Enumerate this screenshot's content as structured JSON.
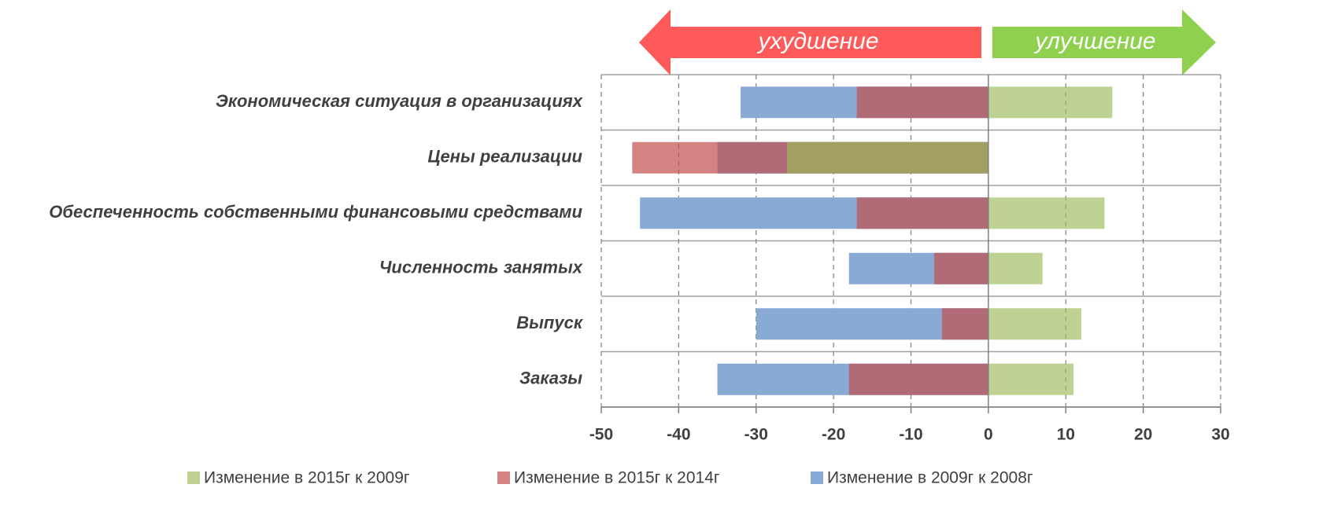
{
  "chart_data": {
    "type": "bar",
    "orientation": "horizontal",
    "overlap": true,
    "annotations": [
      "ухудшение",
      "улучшение"
    ],
    "categories": [
      "Экономическая ситуация в организациях",
      "Цены реализации",
      "Обеспеченность собственными финансовыми средствами",
      "Численность занятых",
      "Выпуск",
      "Заказы"
    ],
    "series": [
      {
        "name": "Изменение в 2015г к 2009г",
        "color": "#9bbb59",
        "opacity": 0.65,
        "values": [
          16,
          -26,
          15,
          7,
          12,
          11
        ]
      },
      {
        "name": "Изменение в 2015г к 2014г",
        "color": "#c0504d",
        "opacity": 0.7,
        "values": [
          -17,
          -46,
          -17,
          -7,
          -6,
          -18
        ]
      },
      {
        "name": "Изменение в 2009г к 2008г",
        "color": "#8aaad6",
        "opacity": 1,
        "values": [
          -32,
          -35,
          -45,
          -18,
          -30,
          -35
        ]
      }
    ],
    "xlim": [
      -50,
      30
    ],
    "xticks": [
      -50,
      -40,
      -30,
      -20,
      -10,
      0,
      10,
      20,
      30
    ],
    "grid": true,
    "legend": "bottom"
  }
}
